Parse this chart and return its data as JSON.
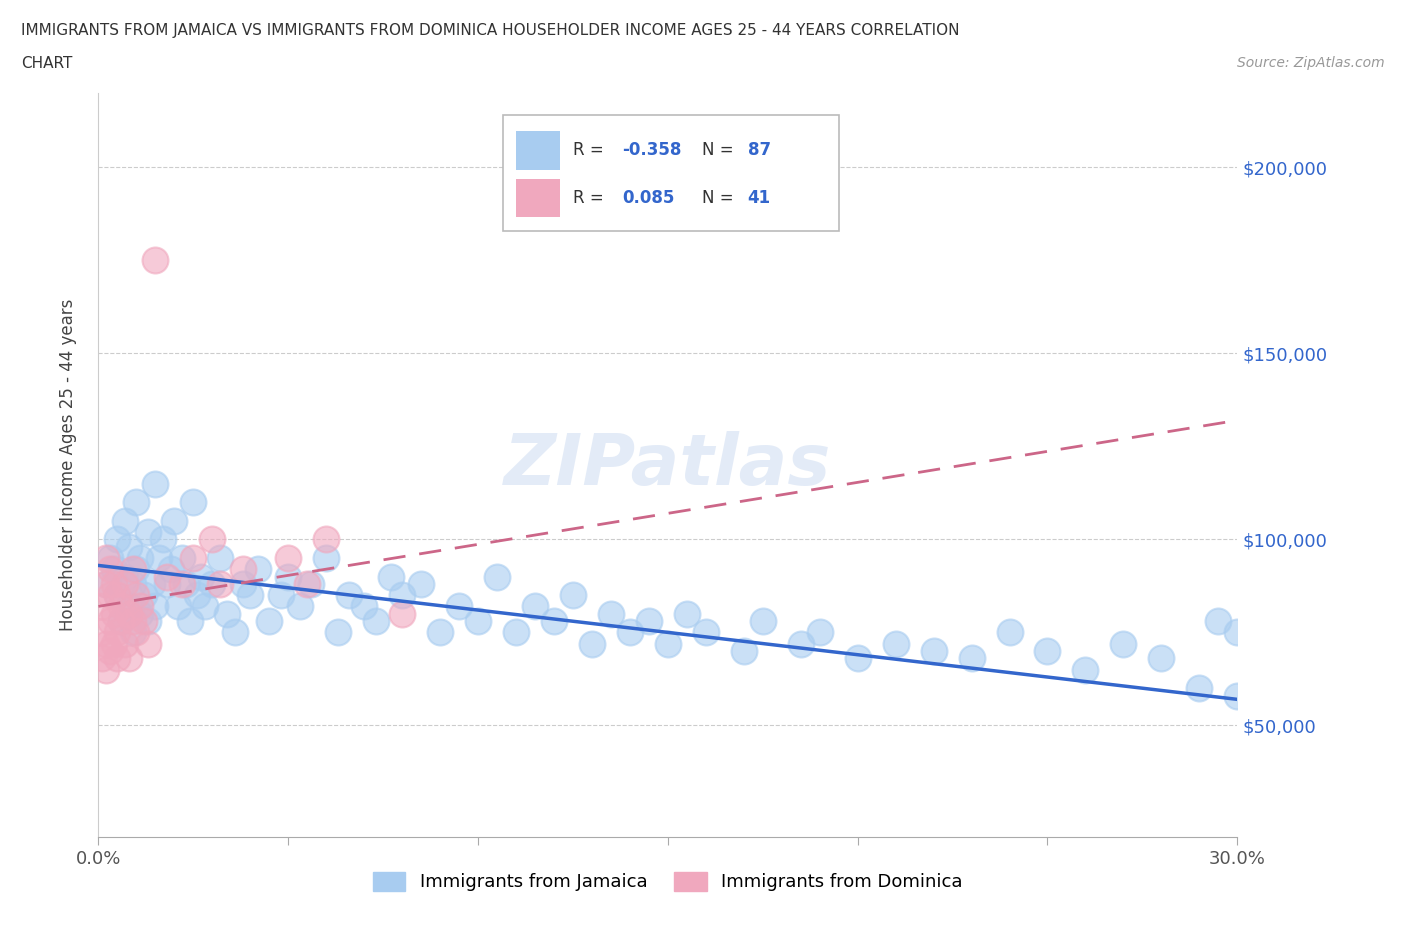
{
  "title_line1": "IMMIGRANTS FROM JAMAICA VS IMMIGRANTS FROM DOMINICA HOUSEHOLDER INCOME AGES 25 - 44 YEARS CORRELATION",
  "title_line2": "CHART",
  "source_text": "Source: ZipAtlas.com",
  "ylabel": "Householder Income Ages 25 - 44 years",
  "xlim": [
    0.0,
    0.3
  ],
  "ylim": [
    20000,
    220000
  ],
  "yticks": [
    50000,
    100000,
    150000,
    200000
  ],
  "ytick_labels": [
    "$50,000",
    "$100,000",
    "$150,000",
    "$200,000"
  ],
  "xtick_vals": [
    0.0,
    0.05,
    0.1,
    0.15,
    0.2,
    0.25,
    0.3
  ],
  "xtick_labels": [
    "0.0%",
    "",
    "",
    "",
    "",
    "",
    "30.0%"
  ],
  "jamaica_R": -0.358,
  "jamaica_N": 87,
  "dominica_R": 0.085,
  "dominica_N": 41,
  "jamaica_color": "#a8ccf0",
  "dominica_color": "#f0a8be",
  "jamaica_line_color": "#3366cc",
  "dominica_line_color": "#cc6688",
  "watermark": "ZIPatlas",
  "legend_jamaica": "Immigrants from Jamaica",
  "legend_dominica": "Immigrants from Dominica",
  "jamaica_line_x0": 0.0,
  "jamaica_line_y0": 93000,
  "jamaica_line_x1": 0.3,
  "jamaica_line_y1": 57000,
  "dominica_line_x0": 0.0,
  "dominica_line_y0": 82000,
  "dominica_line_x1": 0.3,
  "dominica_line_y1": 132000
}
